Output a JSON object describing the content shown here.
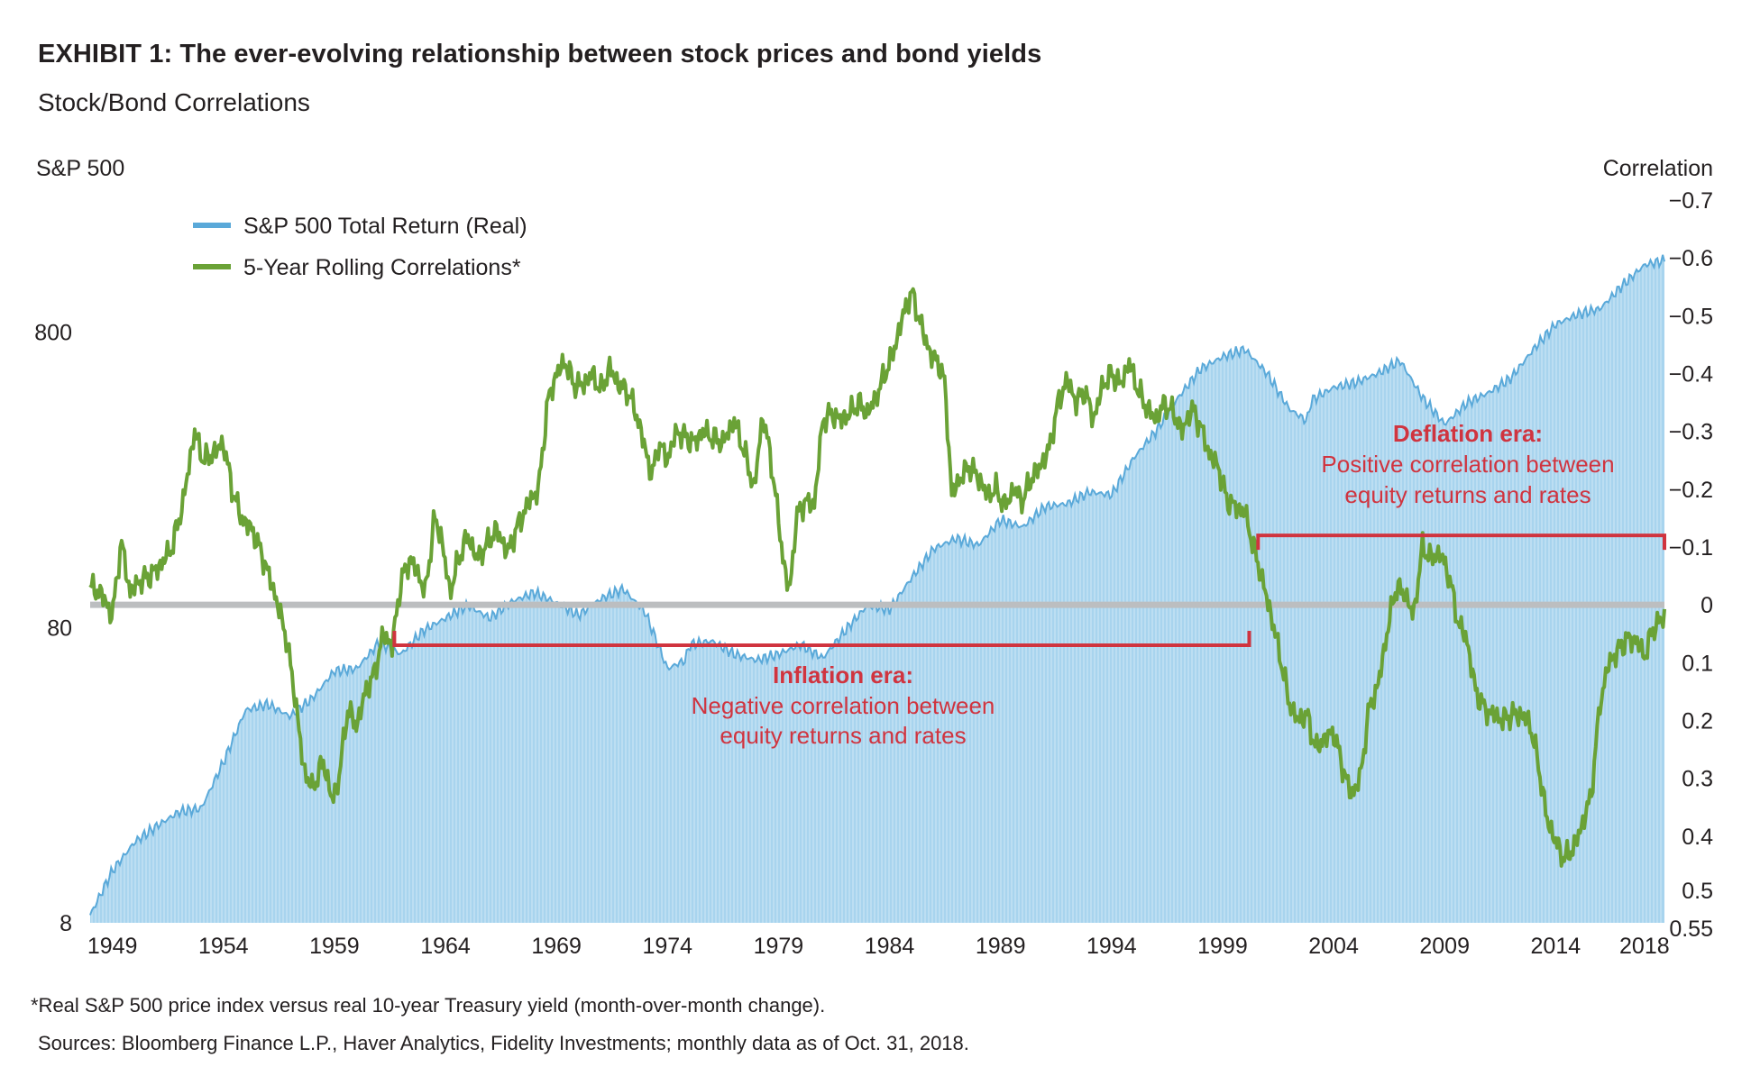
{
  "header": {
    "title": "EXHIBIT 1: The ever-evolving relationship between stock prices and bond yields",
    "subtitle": "Stock/Bond Correlations"
  },
  "footer": {
    "note": "*Real S&P 500 price index versus real 10-year Treasury yield (month-over-month change).",
    "sources": "Sources: Bloomberg Finance L.P., Haver Analytics, Fidelity Investments; monthly data as of Oct. 31, 2018."
  },
  "colors": {
    "area_fill": "#a8d4ee",
    "area_stroke": "#5aa9d9",
    "line": "#6aa236",
    "zero_line": "#bcbec0",
    "annotation": "#d0343f",
    "text": "#231f20"
  },
  "chart_data": {
    "type": "area+line",
    "left_axis": {
      "label": "S&P 500",
      "scale": "log",
      "ticks": [
        "800",
        "80",
        "8"
      ],
      "tick_values": [
        800,
        80,
        8
      ],
      "range": [
        8,
        2240
      ]
    },
    "right_axis": {
      "label": "Correlation",
      "inverted": true,
      "ticks": [
        "−0.7",
        "−0.6",
        "−0.5",
        "−0.4",
        "−0.3",
        "−0.2",
        "−0.1",
        "0",
        "0.1",
        "0.2",
        "0.3",
        "0.4",
        "0.5",
        "0.55"
      ],
      "tick_values": [
        -0.7,
        -0.6,
        -0.5,
        -0.4,
        -0.3,
        -0.2,
        -0.1,
        0,
        0.1,
        0.2,
        0.3,
        0.4,
        0.5,
        0.55
      ],
      "range": [
        -0.7,
        0.55
      ]
    },
    "x_axis": {
      "ticks": [
        "1949",
        "1954",
        "1959",
        "1964",
        "1969",
        "1974",
        "1979",
        "1984",
        "1989",
        "1994",
        "1999",
        "2004",
        "2009",
        "2014",
        "2018"
      ],
      "tick_values": [
        1949,
        1954,
        1959,
        1964,
        1969,
        1974,
        1979,
        1984,
        1989,
        1994,
        1999,
        2004,
        2009,
        2014,
        2018
      ],
      "range": [
        1948,
        2018.9
      ]
    },
    "legend": [
      "S&P 500 Total Return (Real)",
      "5-Year Rolling Correlations*"
    ],
    "series": [
      {
        "name": "S&P 500 Total Return (Real)",
        "kind": "area",
        "x": [
          1948,
          1949,
          1950,
          1951,
          1952,
          1953,
          1954,
          1955,
          1956,
          1957,
          1958,
          1959,
          1960,
          1961,
          1962,
          1963,
          1964,
          1965,
          1966,
          1967,
          1968,
          1969,
          1970,
          1971,
          1972,
          1973,
          1974,
          1974.8,
          1975,
          1976,
          1977,
          1978,
          1979,
          1980,
          1981,
          1982,
          1983,
          1984,
          1985,
          1986,
          1987,
          1988,
          1989,
          1990,
          1991,
          1992,
          1993,
          1994,
          1995,
          1996,
          1997,
          1998,
          1999,
          2000,
          2001,
          2002,
          2002.8,
          2003,
          2004,
          2005,
          2006,
          2007,
          2008,
          2009,
          2010,
          2011,
          2012,
          2013,
          2014,
          2015,
          2016,
          2017,
          2018,
          2018.9
        ],
        "values": [
          8.5,
          12,
          15,
          17,
          19,
          19.5,
          28,
          42,
          44,
          40,
          46,
          57,
          58,
          71,
          65,
          78,
          86,
          95,
          86,
          98,
          105,
          97,
          88,
          100,
          108,
          90,
          58,
          62,
          70,
          72,
          65,
          62,
          65,
          70,
          63,
          78,
          95,
          92,
          118,
          148,
          160,
          152,
          185,
          175,
          205,
          210,
          230,
          225,
          300,
          370,
          480,
          600,
          660,
          700,
          580,
          440,
          400,
          470,
          520,
          540,
          580,
          640,
          480,
          390,
          460,
          500,
          560,
          700,
          850,
          920,
          960,
          1150,
          1350,
          1400
        ]
      },
      {
        "name": "5-Year Rolling Correlations*",
        "kind": "line",
        "x": [
          1948,
          1948.5,
          1949,
          1949.4,
          1949.8,
          1950.2,
          1950.7,
          1951.2,
          1951.7,
          1952.2,
          1952.7,
          1953.1,
          1953.5,
          1954,
          1954.4,
          1954.8,
          1955.3,
          1955.8,
          1956.3,
          1956.8,
          1957.2,
          1957.6,
          1958,
          1958.5,
          1958.9,
          1959.2,
          1959.6,
          1960,
          1960.4,
          1960.8,
          1961.2,
          1961.6,
          1962,
          1962.4,
          1962.8,
          1963.1,
          1963.5,
          1963.8,
          1964.2,
          1964.6,
          1965,
          1965.4,
          1965.8,
          1966.3,
          1966.8,
          1967.3,
          1967.8,
          1968.2,
          1968.6,
          1969,
          1969.4,
          1969.8,
          1970.2,
          1970.6,
          1971,
          1971.4,
          1971.8,
          1972.2,
          1972.6,
          1973,
          1973.3,
          1973.6,
          1974,
          1974.4,
          1974.8,
          1975.2,
          1975.6,
          1976,
          1976.5,
          1977,
          1977.5,
          1977.9,
          1978.3,
          1978.7,
          1978.9,
          1979.2,
          1979.5,
          1979.8,
          1980.2,
          1980.6,
          1981,
          1981.4,
          1981.8,
          1982.2,
          1982.6,
          1983,
          1983.4,
          1983.8,
          1984.2,
          1984.6,
          1985,
          1985.3,
          1985.6,
          1985.9,
          1986.2,
          1986.5,
          1986.8,
          1987.2,
          1987.6,
          1988,
          1988.4,
          1988.8,
          1989.2,
          1989.6,
          1990,
          1990.4,
          1990.8,
          1991.2,
          1991.6,
          1992,
          1992.4,
          1992.8,
          1993.2,
          1993.6,
          1994,
          1994.4,
          1994.8,
          1995.2,
          1995.6,
          1996,
          1996.4,
          1996.8,
          1997.2,
          1997.6,
          1998,
          1998.4,
          1998.8,
          1999.2,
          1999.6,
          2000,
          2000.4,
          2000.8,
          2001.2,
          2001.6,
          2002,
          2002.4,
          2002.8,
          2003.2,
          2003.6,
          2004,
          2004.4,
          2004.8,
          2005.2,
          2005.6,
          2006,
          2006.4,
          2006.8,
          2007.2,
          2007.6,
          2008,
          2008.4,
          2008.8,
          2009.2,
          2009.6,
          2010,
          2010.4,
          2010.8,
          2011.2,
          2011.6,
          2012,
          2012.4,
          2012.8,
          2013.2,
          2013.6,
          2014,
          2014.4,
          2014.8,
          2015.2,
          2015.6,
          2016,
          2016.4,
          2016.8,
          2017.2,
          2017.6,
          2018,
          2018.4,
          2018.9
        ],
        "values": [
          -0.03,
          -0.02,
          0.02,
          -0.11,
          -0.02,
          -0.04,
          -0.05,
          -0.07,
          -0.1,
          -0.18,
          -0.3,
          -0.25,
          -0.26,
          -0.28,
          -0.2,
          -0.15,
          -0.13,
          -0.08,
          -0.02,
          0.05,
          0.15,
          0.28,
          0.32,
          0.27,
          0.34,
          0.3,
          0.18,
          0.21,
          0.15,
          0.12,
          0.05,
          0.07,
          -0.04,
          -0.08,
          -0.05,
          -0.02,
          -0.15,
          -0.12,
          -0.02,
          -0.08,
          -0.12,
          -0.08,
          -0.1,
          -0.13,
          -0.09,
          -0.14,
          -0.18,
          -0.2,
          -0.35,
          -0.4,
          -0.42,
          -0.38,
          -0.38,
          -0.4,
          -0.37,
          -0.41,
          -0.38,
          -0.37,
          -0.33,
          -0.27,
          -0.22,
          -0.28,
          -0.25,
          -0.3,
          -0.29,
          -0.28,
          -0.3,
          -0.29,
          -0.28,
          -0.32,
          -0.26,
          -0.2,
          -0.33,
          -0.24,
          -0.18,
          -0.08,
          -0.02,
          -0.15,
          -0.18,
          -0.17,
          -0.32,
          -0.33,
          -0.32,
          -0.33,
          -0.35,
          -0.33,
          -0.36,
          -0.4,
          -0.44,
          -0.5,
          -0.54,
          -0.5,
          -0.46,
          -0.43,
          -0.42,
          -0.38,
          -0.19,
          -0.22,
          -0.24,
          -0.22,
          -0.19,
          -0.2,
          -0.17,
          -0.2,
          -0.18,
          -0.22,
          -0.24,
          -0.27,
          -0.35,
          -0.39,
          -0.35,
          -0.37,
          -0.32,
          -0.38,
          -0.4,
          -0.38,
          -0.42,
          -0.37,
          -0.34,
          -0.32,
          -0.35,
          -0.33,
          -0.3,
          -0.34,
          -0.31,
          -0.26,
          -0.24,
          -0.18,
          -0.17,
          -0.16,
          -0.1,
          -0.04,
          0.02,
          0.09,
          0.17,
          0.2,
          0.19,
          0.25,
          0.23,
          0.22,
          0.28,
          0.33,
          0.3,
          0.18,
          0.14,
          0.05,
          -0.03,
          -0.02,
          0.02,
          -0.1,
          -0.08,
          -0.09,
          -0.05,
          0.03,
          0.06,
          0.15,
          0.18,
          0.19,
          0.2,
          0.19,
          0.19,
          0.2,
          0.27,
          0.37,
          0.41,
          0.44,
          0.42,
          0.38,
          0.33,
          0.17,
          0.1,
          0.08,
          0.06,
          0.06,
          0.09,
          0.04,
          0.02
        ]
      }
    ],
    "annotations": [
      {
        "id": "inflation",
        "title": "Inflation era:",
        "lines": [
          "Negative correlation between",
          "equity returns and rates"
        ],
        "bracket": {
          "from": 1961.7,
          "to": 2000.2,
          "at": 0.07,
          "opens": "up"
        }
      },
      {
        "id": "deflation",
        "title": "Deflation era:",
        "lines": [
          "Positive correlation between",
          "equity returns and rates"
        ],
        "bracket": {
          "from": 2000.6,
          "to": 2018.9,
          "at": -0.12,
          "opens": "down"
        }
      }
    ]
  }
}
